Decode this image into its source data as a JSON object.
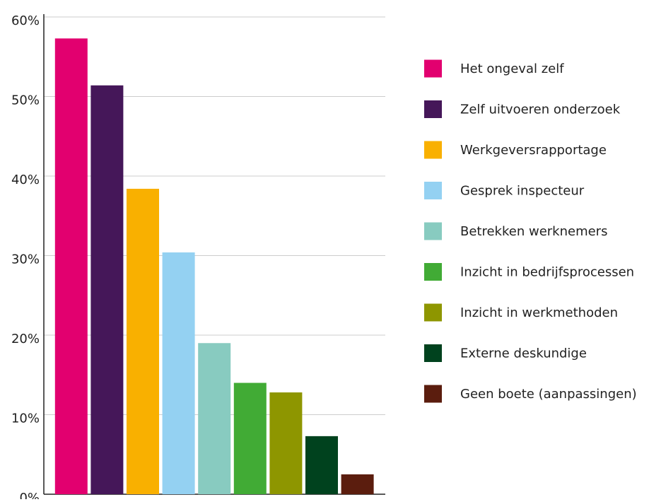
{
  "chart_data": {
    "type": "bar",
    "categories": [
      "Het ongeval zelf",
      "Zelf uitvoeren onderzoek",
      "Werkgeversrapportage",
      "Gesprek inspecteur",
      "Betrekken werknemers",
      "Inzicht in bedrijfsprocessen",
      "Inzicht in werkmethoden",
      "Externe deskundige",
      "Geen boete (aanpassingen)"
    ],
    "values": [
      57.3,
      51.4,
      38.4,
      30.4,
      19.0,
      14.0,
      12.8,
      7.3,
      2.5
    ],
    "colors": [
      "#e2006f",
      "#451759",
      "#f9b000",
      "#94d1f2",
      "#88cbc0",
      "#41ab35",
      "#8e9600",
      "#00421e",
      "#5b1d0e"
    ],
    "ylim": [
      0,
      60
    ],
    "yticks": [
      {
        "value": 0,
        "label": "0%"
      },
      {
        "value": 10,
        "label": "10%"
      },
      {
        "value": 20,
        "label": "20%"
      },
      {
        "value": 30,
        "label": "30%"
      },
      {
        "value": 40,
        "label": "40%"
      },
      {
        "value": 50,
        "label": "50%"
      },
      {
        "value": 60,
        "label": "60%"
      }
    ],
    "grid": true,
    "legend": "right"
  }
}
